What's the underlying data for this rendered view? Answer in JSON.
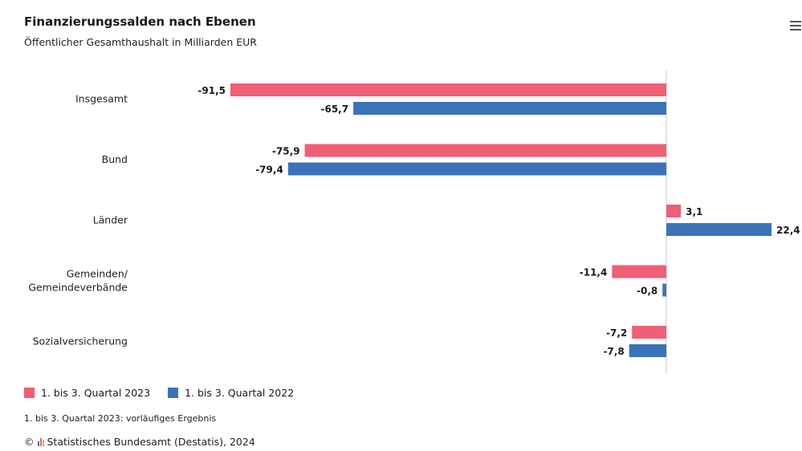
{
  "title": "Finanzierungssalden nach Ebenen",
  "subtitle": "Öffentlicher Gesamthaushalt in Milliarden EUR",
  "menu_icon": "hamburger-menu-icon",
  "legend": [
    {
      "label": "1. bis 3. Quartal 2023",
      "color": "#ef5f75"
    },
    {
      "label": "1. bis 3. Quartal 2022",
      "color": "#3b73b9"
    }
  ],
  "footnote": "1. bis 3. Quartal 2023: vorläufiges Ergebnis",
  "source": {
    "copyright": "©",
    "logo": "destatis-logo-icon",
    "text": "Statistisches Bundesamt (Destatis), 2024"
  },
  "chart_data": {
    "type": "bar",
    "orientation": "horizontal",
    "title": "Finanzierungssalden nach Ebenen",
    "subtitle": "Öffentlicher Gesamthaushalt in Milliarden EUR",
    "categories": [
      "Insgesamt",
      "Bund",
      "Länder",
      "Gemeinden/\nGemeindeverbände",
      "Sozialversicherung"
    ],
    "series": [
      {
        "name": "1. bis 3. Quartal 2023",
        "color": "#ef5f75",
        "values": [
          -91.5,
          -75.9,
          3.1,
          -11.4,
          -7.2
        ],
        "labels": [
          "-91,5",
          "-75,9",
          "3,1",
          "-11,4",
          "-7,2"
        ]
      },
      {
        "name": "1. bis 3. Quartal 2022",
        "color": "#3b73b9",
        "values": [
          -65.7,
          -79.4,
          22.4,
          -0.8,
          -7.8
        ],
        "labels": [
          "-65,7",
          "-79,4",
          "22,4",
          "-0,8",
          "-7,8"
        ]
      }
    ],
    "xlim": [
      -91.5,
      22.4
    ],
    "grid": false,
    "legend_position": "bottom-left"
  }
}
